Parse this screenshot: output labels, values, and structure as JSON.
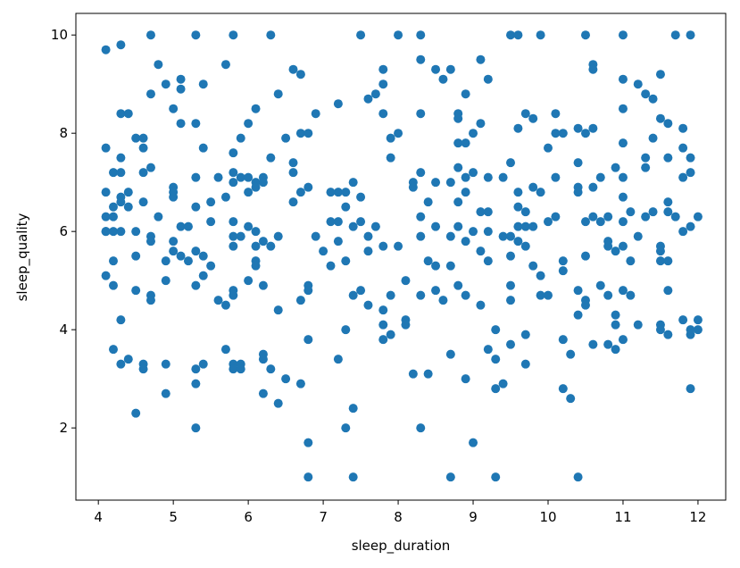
{
  "chart_data": {
    "type": "scatter",
    "x_label": "sleep_duration",
    "y_label": "sleep_quality",
    "color": "#1f77b4",
    "xlim": [
      3.7,
      12.37
    ],
    "ylim": [
      0.53,
      10.44
    ],
    "xticks": [
      4,
      5,
      6,
      7,
      8,
      9,
      10,
      11,
      12
    ],
    "yticks": [
      2,
      4,
      6,
      8,
      10
    ],
    "x": [
      4.1,
      4.1,
      4.1,
      4.1,
      4.1,
      4.1,
      4.1,
      4.2,
      4.2,
      4.2,
      4.2,
      4.2,
      4.2,
      4.2,
      4.3,
      4.3,
      4.3,
      4.3,
      4.3,
      4.3,
      4.3,
      4.3,
      4.3,
      4.4,
      4.4,
      4.4,
      4.4,
      4.5,
      4.5,
      4.5,
      4.5,
      4.5,
      4.6,
      4.6,
      4.6,
      4.6,
      4.6,
      4.6,
      4.7,
      4.7,
      4.7,
      4.7,
      4.7,
      4.7,
      4.7,
      4.8,
      4.8,
      4.9,
      4.9,
      4.9,
      4.9,
      4.9,
      5.0,
      5.0,
      5.0,
      5.0,
      5.0,
      5.0,
      5.1,
      5.1,
      5.1,
      5.1,
      5.1,
      5.2,
      5.2,
      5.3,
      5.3,
      5.3,
      5.3,
      5.3,
      5.3,
      5.3,
      5.3,
      5.3,
      5.4,
      5.4,
      5.4,
      5.4,
      5.4,
      5.5,
      5.5,
      5.5,
      5.6,
      5.6,
      5.7,
      5.7,
      5.7,
      5.7,
      5.8,
      5.8,
      5.8,
      5.8,
      5.8,
      5.8,
      5.8,
      5.8,
      5.8,
      5.8,
      5.8,
      5.9,
      5.9,
      5.9,
      5.9,
      5.9,
      6.0,
      6.0,
      6.0,
      6.0,
      6.0,
      6.1,
      6.1,
      6.1,
      6.1,
      6.1,
      6.1,
      6.1,
      6.2,
      6.2,
      6.2,
      6.2,
      6.2,
      6.2,
      6.2,
      6.3,
      6.3,
      6.3,
      6.3,
      6.4,
      6.4,
      6.4,
      6.4,
      6.5,
      6.5,
      6.6,
      6.6,
      6.6,
      6.6,
      6.7,
      6.7,
      6.7,
      6.7,
      6.7,
      6.8,
      6.8,
      6.8,
      6.8,
      6.8,
      6.8,
      6.8,
      6.9,
      6.9,
      7.0,
      7.1,
      7.1,
      7.1,
      7.2,
      7.2,
      7.2,
      7.2,
      7.2,
      7.3,
      7.3,
      7.3,
      7.3,
      7.3,
      7.4,
      7.4,
      7.4,
      7.4,
      7.4,
      7.5,
      7.5,
      7.5,
      7.5,
      7.6,
      7.6,
      7.6,
      7.6,
      7.7,
      7.7,
      7.8,
      7.8,
      7.8,
      7.8,
      7.8,
      7.8,
      7.8,
      7.9,
      7.9,
      7.9,
      7.9,
      8.0,
      8.0,
      8.0,
      8.1,
      8.1,
      8.1,
      8.2,
      8.2,
      8.2,
      8.3,
      8.3,
      8.3,
      8.3,
      8.3,
      8.3,
      8.3,
      8.3,
      8.4,
      8.4,
      8.4,
      8.5,
      8.5,
      8.5,
      8.5,
      8.5,
      8.6,
      8.6,
      8.7,
      8.7,
      8.7,
      8.7,
      8.7,
      8.7,
      8.8,
      8.8,
      8.8,
      8.8,
      8.8,
      8.8,
      8.8,
      8.9,
      8.9,
      8.9,
      8.9,
      8.9,
      8.9,
      8.9,
      9.0,
      9.0,
      9.0,
      9.0,
      9.1,
      9.1,
      9.1,
      9.1,
      9.1,
      9.2,
      9.2,
      9.2,
      9.2,
      9.2,
      9.2,
      9.3,
      9.3,
      9.3,
      9.3,
      9.4,
      9.4,
      9.4,
      9.5,
      9.5,
      9.5,
      9.5,
      9.5,
      9.5,
      9.5,
      9.6,
      9.6,
      9.6,
      9.6,
      9.6,
      9.6,
      9.7,
      9.7,
      9.7,
      9.7,
      9.7,
      9.7,
      9.8,
      9.8,
      9.8,
      9.8,
      9.9,
      9.9,
      9.9,
      9.9,
      10.0,
      10.0,
      10.0,
      10.1,
      10.1,
      10.1,
      10.1,
      10.2,
      10.2,
      10.2,
      10.2,
      10.2,
      10.3,
      10.3,
      10.4,
      10.4,
      10.4,
      10.4,
      10.4,
      10.4,
      10.4,
      10.5,
      10.5,
      10.5,
      10.5,
      10.5,
      10.5,
      10.6,
      10.6,
      10.6,
      10.6,
      10.6,
      10.6,
      10.7,
      10.7,
      10.7,
      10.8,
      10.8,
      10.8,
      10.8,
      10.8,
      10.9,
      10.9,
      10.9,
      10.9,
      10.9,
      11.0,
      11.0,
      11.0,
      11.0,
      11.0,
      11.0,
      11.0,
      11.0,
      11.0,
      11.0,
      11.1,
      11.1,
      11.1,
      11.2,
      11.2,
      11.2,
      11.3,
      11.3,
      11.3,
      11.3,
      11.4,
      11.4,
      11.4,
      11.5,
      11.5,
      11.5,
      11.5,
      11.5,
      11.5,
      11.5,
      11.6,
      11.6,
      11.6,
      11.6,
      11.6,
      11.6,
      11.6,
      11.7,
      11.7,
      11.8,
      11.8,
      11.8,
      11.8,
      11.8,
      11.9,
      11.9,
      11.9,
      11.9,
      11.9,
      11.9,
      11.9,
      12.0,
      12.0,
      12.0
    ],
    "values": [
      9.7,
      7.7,
      6.8,
      6.3,
      6.0,
      5.1,
      6.0,
      6.3,
      6.0,
      5.4,
      4.9,
      3.6,
      7.2,
      6.5,
      9.8,
      8.4,
      7.5,
      7.2,
      6.7,
      6.0,
      4.2,
      3.3,
      6.6,
      8.4,
      6.8,
      6.5,
      3.4,
      7.9,
      6.0,
      5.5,
      4.8,
      2.3,
      7.9,
      7.7,
      7.2,
      6.6,
      3.3,
      3.2,
      10,
      8.8,
      7.3,
      5.9,
      5.8,
      4.7,
      4.6,
      9.4,
      6.3,
      9.0,
      5.4,
      5.0,
      3.3,
      2.7,
      8.5,
      6.9,
      6.8,
      6.7,
      5.8,
      5.6,
      9.1,
      8.9,
      8.2,
      6.1,
      5.5,
      6.1,
      5.4,
      10,
      8.2,
      7.1,
      6.5,
      5.6,
      4.9,
      3.2,
      2.9,
      2.0,
      9.0,
      7.7,
      5.5,
      5.1,
      3.3,
      6.6,
      6.2,
      5.3,
      7.1,
      4.6,
      9.4,
      6.7,
      4.5,
      3.6,
      10,
      7.6,
      7.2,
      7.0,
      6.2,
      5.9,
      5.7,
      4.8,
      4.7,
      3.3,
      3.2,
      7.9,
      7.1,
      5.9,
      3.3,
      3.2,
      8.2,
      7.1,
      6.8,
      6.1,
      5.0,
      8.5,
      7.0,
      6.9,
      6.0,
      5.7,
      5.4,
      5.3,
      7.1,
      7.0,
      5.8,
      4.9,
      3.5,
      3.4,
      2.7,
      10,
      7.5,
      5.7,
      3.2,
      8.8,
      5.9,
      4.4,
      2.5,
      7.9,
      3.0,
      9.3,
      7.4,
      7.2,
      6.6,
      9.2,
      8.0,
      6.8,
      4.6,
      2.9,
      8.0,
      6.9,
      4.9,
      4.8,
      3.8,
      1.7,
      1.0,
      8.4,
      5.9,
      5.6,
      6.8,
      6.2,
      5.3,
      8.6,
      6.8,
      6.2,
      5.8,
      3.4,
      6.8,
      6.5,
      5.4,
      4.0,
      2.0,
      7.0,
      6.1,
      4.7,
      2.4,
      1.0,
      10,
      6.7,
      6.2,
      4.8,
      8.7,
      5.9,
      5.6,
      4.5,
      8.8,
      6.1,
      9.3,
      9.0,
      8.4,
      5.7,
      4.4,
      4.1,
      3.8,
      7.9,
      7.5,
      4.7,
      3.9,
      10,
      8.0,
      5.7,
      5.0,
      4.2,
      4.1,
      7.0,
      6.9,
      3.1,
      10,
      9.5,
      8.4,
      7.2,
      6.3,
      5.9,
      4.7,
      2.0,
      6.6,
      5.4,
      3.1,
      9.3,
      7.0,
      6.1,
      5.3,
      4.8,
      9.1,
      4.6,
      9.3,
      7.0,
      5.9,
      5.3,
      3.5,
      1.0,
      8.4,
      8.3,
      7.8,
      7.3,
      6.6,
      6.1,
      4.9,
      8.8,
      7.8,
      7.1,
      6.8,
      5.8,
      4.7,
      3.0,
      8.0,
      7.2,
      6.0,
      1.7,
      9.5,
      8.2,
      6.4,
      5.6,
      4.5,
      9.1,
      7.1,
      6.4,
      6.0,
      5.4,
      3.6,
      4.0,
      3.4,
      2.8,
      1.0,
      7.1,
      5.9,
      2.9,
      10,
      7.4,
      5.9,
      5.5,
      4.9,
      4.6,
      3.7,
      10,
      8.1,
      6.8,
      6.5,
      6.1,
      5.8,
      8.4,
      6.4,
      6.1,
      5.7,
      3.9,
      3.3,
      8.3,
      6.9,
      6.1,
      5.3,
      10,
      6.8,
      5.1,
      4.7,
      7.7,
      6.2,
      4.7,
      8.4,
      8.0,
      7.1,
      6.3,
      8.0,
      5.4,
      5.2,
      3.8,
      2.8,
      3.5,
      2.6,
      8.1,
      7.4,
      6.9,
      6.8,
      4.8,
      4.3,
      1.0,
      10,
      8.0,
      6.2,
      5.5,
      4.6,
      4.5,
      9.4,
      9.3,
      8.1,
      6.9,
      6.3,
      3.7,
      7.1,
      6.2,
      4.9,
      6.3,
      5.8,
      5.7,
      4.7,
      3.7,
      7.3,
      5.6,
      4.3,
      4.1,
      3.6,
      10,
      9.1,
      8.5,
      7.8,
      7.1,
      6.7,
      6.2,
      5.7,
      4.8,
      3.8,
      6.4,
      5.4,
      4.7,
      9.0,
      5.9,
      4.1,
      8.8,
      7.5,
      7.3,
      6.3,
      8.7,
      7.9,
      6.4,
      9.2,
      8.3,
      5.7,
      5.6,
      5.4,
      4.1,
      4.0,
      8.2,
      7.5,
      6.6,
      6.4,
      5.4,
      4.8,
      3.9,
      10,
      6.3,
      8.1,
      7.7,
      7.1,
      6.0,
      4.2,
      10,
      7.5,
      7.2,
      6.1,
      4.0,
      3.9,
      2.8,
      6.3,
      4.2,
      4.0
    ]
  }
}
